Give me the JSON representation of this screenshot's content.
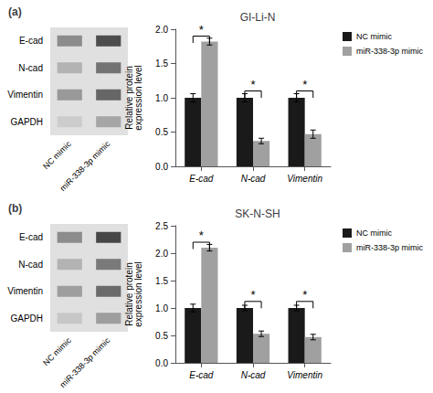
{
  "chart_data": [
    {
      "type": "heatmap",
      "annotations": [
        {
          "text": "(a)"
        }
      ],
      "categories": [
        "E-cad",
        "N-cad",
        "Vimentin",
        "GAPDH"
      ],
      "series": [
        {
          "name": "NC mimic",
          "values": [
            0.45,
            0.3,
            0.4,
            0.2
          ]
        },
        {
          "name": "miR-338-3p mimic",
          "values": [
            0.7,
            0.55,
            0.6,
            0.35
          ]
        }
      ]
    },
    {
      "type": "bar",
      "title": "GI-Li-N",
      "categories": [
        "E-cad",
        "N-cad",
        "Vimentin"
      ],
      "series": [
        {
          "name": "NC mimic",
          "color": "#1a1a1a",
          "values": [
            1.0,
            1.0,
            1.0
          ],
          "errors": [
            0.06,
            0.06,
            0.06
          ]
        },
        {
          "name": "miR-338-3p mimic",
          "color": "#a0a0a0",
          "values": [
            1.82,
            0.37,
            0.47
          ],
          "errors": [
            0.05,
            0.04,
            0.06
          ]
        }
      ],
      "ylabel": "Relative protein\nexpression level",
      "ylim": [
        0,
        2.0
      ],
      "yticks": [
        {
          "value": 0,
          "label": "0.0"
        },
        0.5,
        {
          "value": 1,
          "label": "1.0"
        },
        1.5,
        {
          "value": 2,
          "label": "2.0"
        }
      ],
      "grid": false,
      "legend": "right",
      "annotations": [
        {
          "category": "E-cad",
          "y": 1.9,
          "text": "*"
        },
        {
          "category": "N-cad",
          "y": 1.1,
          "text": "*"
        },
        {
          "category": "Vimentin",
          "y": 1.1,
          "text": "*"
        }
      ]
    },
    {
      "type": "heatmap",
      "annotations": [
        {
          "text": "(b)"
        }
      ],
      "categories": [
        "E-cad",
        "N-cad",
        "Vimentin",
        "GAPDH"
      ],
      "series": [
        {
          "name": "NC mimic",
          "values": [
            0.45,
            0.3,
            0.38,
            0.22
          ]
        },
        {
          "name": "miR-338-3p mimic",
          "values": [
            0.72,
            0.52,
            0.58,
            0.38
          ]
        }
      ]
    },
    {
      "type": "bar",
      "title": "SK-N-SH",
      "categories": [
        "E-cad",
        "N-cad",
        "Vimentin"
      ],
      "series": [
        {
          "name": "NC mimic",
          "color": "#1a1a1a",
          "values": [
            1.0,
            1.0,
            1.0
          ],
          "errors": [
            0.07,
            0.05,
            0.05
          ]
        },
        {
          "name": "miR-338-3p mimic",
          "color": "#a0a0a0",
          "values": [
            2.1,
            0.53,
            0.47
          ],
          "errors": [
            0.06,
            0.05,
            0.05
          ]
        }
      ],
      "ylabel": "Relative protein\nexpression level",
      "ylim": [
        0,
        2.5
      ],
      "yticks": [
        {
          "value": 0,
          "label": "0.0"
        },
        0.5,
        {
          "value": 1,
          "label": "1.0"
        },
        1.5,
        {
          "value": 2,
          "label": "2.0"
        },
        2.5
      ],
      "grid": false,
      "legend": "right",
      "annotations": [
        {
          "category": "E-cad",
          "y": 2.2,
          "text": "*"
        },
        {
          "category": "N-cad",
          "y": 1.12,
          "text": "*"
        },
        {
          "category": "Vimentin",
          "y": 1.12,
          "text": "*"
        }
      ]
    }
  ]
}
